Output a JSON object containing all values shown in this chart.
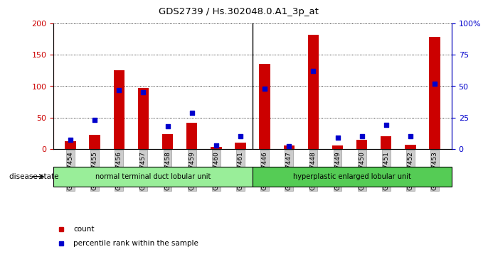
{
  "title": "GDS2739 / Hs.302048.0.A1_3p_at",
  "categories": [
    "GSM177454",
    "GSM177455",
    "GSM177456",
    "GSM177457",
    "GSM177458",
    "GSM177459",
    "GSM177460",
    "GSM177461",
    "GSM177446",
    "GSM177447",
    "GSM177448",
    "GSM177449",
    "GSM177450",
    "GSM177451",
    "GSM177452",
    "GSM177453"
  ],
  "count_values": [
    12,
    23,
    125,
    97,
    24,
    42,
    3,
    10,
    135,
    5,
    182,
    5,
    15,
    20,
    7,
    178
  ],
  "percentile_values": [
    7,
    23,
    47,
    45,
    18,
    29,
    3,
    10,
    48,
    2,
    62,
    9,
    10,
    19,
    10,
    52
  ],
  "group1_label": "normal terminal duct lobular unit",
  "group2_label": "hyperplastic enlarged lobular unit",
  "group1_count": 8,
  "group2_count": 8,
  "ylim_left": [
    0,
    200
  ],
  "ylim_right": [
    0,
    100
  ],
  "yticks_left": [
    0,
    50,
    100,
    150,
    200
  ],
  "yticks_right": [
    0,
    25,
    50,
    75,
    100
  ],
  "yticklabels_right": [
    "0",
    "25",
    "50",
    "75",
    "100%"
  ],
  "bar_width": 0.45,
  "count_color": "#cc0000",
  "percentile_color": "#0000cc",
  "bg_color": "#cccccc",
  "group1_color": "#99ee99",
  "group2_color": "#55cc55",
  "legend_count": "count",
  "legend_pct": "percentile rank within the sample"
}
